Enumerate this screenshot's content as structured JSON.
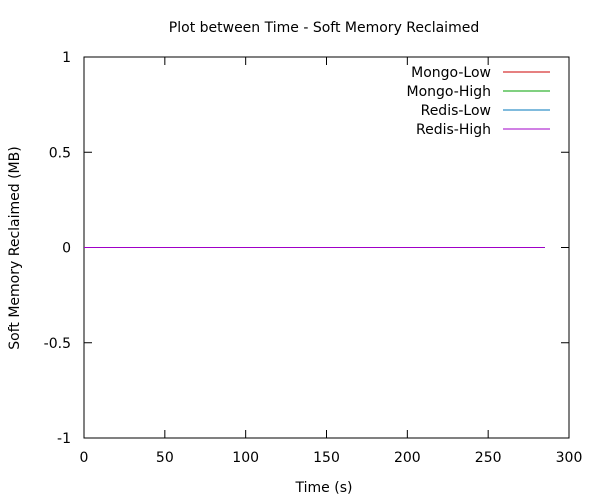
{
  "chart_data": {
    "type": "line",
    "title": "Plot between Time - Soft Memory Reclaimed",
    "xlabel": "Time (s)",
    "ylabel": "Soft Memory Reclaimed (MB)",
    "xlim": [
      0,
      300
    ],
    "ylim": [
      -1,
      1
    ],
    "xticks": [
      {
        "value": 0,
        "label": "0"
      },
      {
        "value": 50,
        "label": "50"
      },
      {
        "value": 100,
        "label": "100"
      },
      {
        "value": 150,
        "label": "150"
      },
      {
        "value": 200,
        "label": "200"
      },
      {
        "value": 250,
        "label": "250"
      },
      {
        "value": 300,
        "label": "300"
      }
    ],
    "yticks": [
      {
        "value": -1,
        "label": "-1"
      },
      {
        "value": -0.5,
        "label": "-0.5"
      },
      {
        "value": 0,
        "label": "0"
      },
      {
        "value": 0.5,
        "label": "0.5"
      },
      {
        "value": 1,
        "label": "1"
      }
    ],
    "grid": false,
    "legend_position": "top-right",
    "series": [
      {
        "name": "Mongo-Low",
        "color": "#cc0000",
        "x": [
          0,
          285
        ],
        "y": [
          0,
          0
        ]
      },
      {
        "name": "Mongo-High",
        "color": "#00a000",
        "x": [
          0,
          285
        ],
        "y": [
          0,
          0
        ]
      },
      {
        "name": "Redis-Low",
        "color": "#0077bb",
        "x": [
          0,
          285
        ],
        "y": [
          0,
          0
        ]
      },
      {
        "name": "Redis-High",
        "color": "#a000c8",
        "x": [
          0,
          285
        ],
        "y": [
          0,
          0
        ]
      }
    ]
  }
}
